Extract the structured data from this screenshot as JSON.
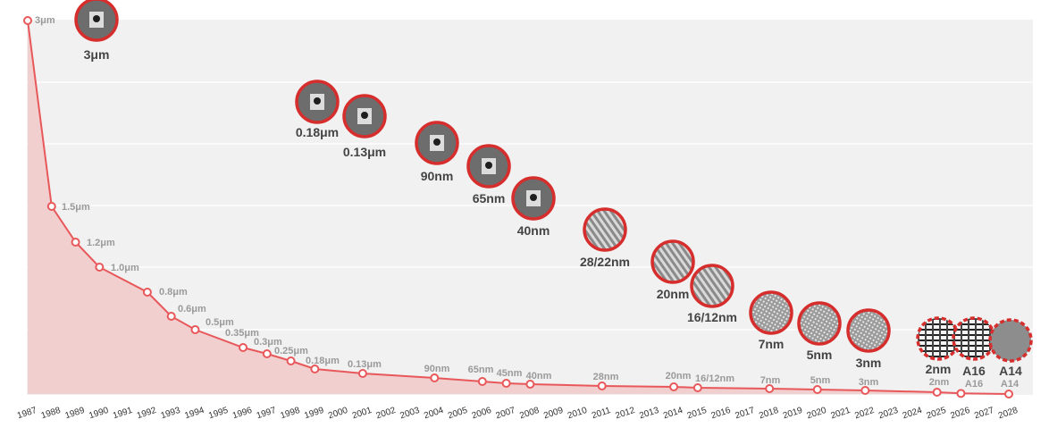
{
  "chart_data": {
    "type": "line",
    "title": "",
    "xlabel": "",
    "ylabel": "",
    "x_ticks": [
      "1987",
      "1988",
      "1989",
      "1990",
      "1991",
      "1992",
      "1993",
      "1994",
      "1995",
      "1996",
      "1997",
      "1998",
      "1999",
      "2000",
      "2001",
      "2002",
      "2003",
      "2004",
      "2005",
      "2006",
      "2007",
      "2008",
      "2009",
      "2010",
      "2011",
      "2012",
      "2013",
      "2014",
      "2015",
      "2016",
      "2017",
      "2018",
      "2019",
      "2020",
      "2021",
      "2022",
      "2023",
      "2024",
      "2025",
      "2026",
      "2027",
      "2028"
    ],
    "xlim": [
      1987,
      2028
    ],
    "grid": true,
    "colors": {
      "line": "#e8585a",
      "area": "#f2cfcf",
      "plot_bg": "#f1f1f1",
      "marker_fill": "#ffffff",
      "badge_ring": "#d62d2d"
    },
    "series": [
      {
        "points": [
          {
            "x": 1987,
            "y": 3.0,
            "label": "3μm"
          },
          {
            "x": 1988,
            "y": 1.5,
            "label": "1.5μm"
          },
          {
            "x": 1989,
            "y": 1.2,
            "label": "1.2μm"
          },
          {
            "x": 1990,
            "y": 1.0,
            "label": "1.0μm"
          },
          {
            "x": 1992,
            "y": 0.8,
            "label": "0.8μm"
          },
          {
            "x": 1993,
            "y": 0.6,
            "label": "0.6μm"
          },
          {
            "x": 1994,
            "y": 0.5,
            "label": "0.5μm"
          },
          {
            "x": 1996,
            "y": 0.35,
            "label": "0.35μm"
          },
          {
            "x": 1997,
            "y": 0.3,
            "label": "0.3μm"
          },
          {
            "x": 1998,
            "y": 0.25,
            "label": "0.25μm"
          },
          {
            "x": 1999,
            "y": 0.18,
            "label": "0.18μm"
          },
          {
            "x": 2001,
            "y": 0.13,
            "label": "0.13μm"
          },
          {
            "x": 2004,
            "y": 0.09,
            "label": "90nm"
          },
          {
            "x": 2006,
            "y": 0.065,
            "label": "65nm"
          },
          {
            "x": 2007,
            "y": 0.045,
            "label": "45nm"
          },
          {
            "x": 2008,
            "y": 0.04,
            "label": "40nm"
          },
          {
            "x": 2011,
            "y": 0.028,
            "label": "28nm"
          },
          {
            "x": 2014,
            "y": 0.02,
            "label": "20nm"
          },
          {
            "x": 2015,
            "y": 0.016,
            "label": "16/12nm"
          },
          {
            "x": 2018,
            "y": 0.007,
            "label": "7nm"
          },
          {
            "x": 2020,
            "y": 0.005,
            "label": "5nm"
          },
          {
            "x": 2022,
            "y": 0.003,
            "label": "3nm"
          },
          {
            "x": 2025,
            "y": 0.002,
            "label": "2nm"
          },
          {
            "x": 2026,
            "y": 0.0016,
            "label": "A16"
          },
          {
            "x": 2028,
            "y": 0.0014,
            "label": "A14"
          }
        ]
      }
    ],
    "badges": [
      {
        "label": "3μm",
        "kind": "solid",
        "pattern": "cross-section"
      },
      {
        "label": "0.18μm",
        "kind": "solid",
        "pattern": "cross-section"
      },
      {
        "label": "0.13μm",
        "kind": "solid",
        "pattern": "cross-section"
      },
      {
        "label": "90nm",
        "kind": "solid",
        "pattern": "cross-section"
      },
      {
        "label": "65nm",
        "kind": "solid",
        "pattern": "cross-section"
      },
      {
        "label": "40nm",
        "kind": "solid",
        "pattern": "cross-section"
      },
      {
        "label": "28/22nm",
        "kind": "solid",
        "pattern": "fins"
      },
      {
        "label": "20nm",
        "kind": "solid",
        "pattern": "fins"
      },
      {
        "label": "16/12nm",
        "kind": "solid",
        "pattern": "fins"
      },
      {
        "label": "7nm",
        "kind": "solid",
        "pattern": "mesh"
      },
      {
        "label": "5nm",
        "kind": "solid",
        "pattern": "mesh"
      },
      {
        "label": "3nm",
        "kind": "solid",
        "pattern": "mesh"
      },
      {
        "label": "2nm",
        "kind": "dashed",
        "pattern": "nanosheet"
      },
      {
        "label": "A16",
        "kind": "dashed",
        "pattern": "nanosheet"
      },
      {
        "label": "A14",
        "kind": "dashed",
        "pattern": "plain"
      }
    ]
  }
}
